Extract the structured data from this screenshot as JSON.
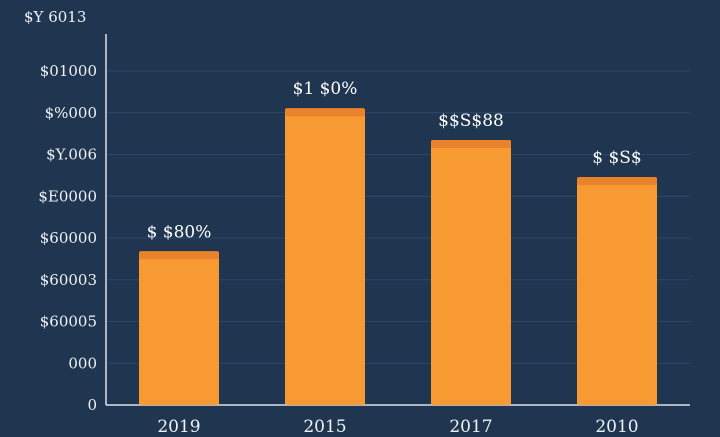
{
  "colors": {
    "background": "#1f3550",
    "bar": "#f79a32",
    "bar_top": "#e9822a",
    "grid": "#2d4867",
    "text": "#eef3f8"
  },
  "chart_data": {
    "type": "bar",
    "title": "",
    "xlabel": "",
    "ylabel": "",
    "axis_top_label": "$Y 6013",
    "y_tick_labels": [
      "$01000",
      "$%000",
      "$Y.006",
      "$E0000",
      "$60000",
      "$60003",
      "$60005",
      "000",
      "0"
    ],
    "categories": [
      "2019",
      "2015",
      "2017",
      "2010"
    ],
    "values": [
      2.9,
      5.6,
      5.0,
      4.3
    ],
    "value_labels": [
      "$ $80%",
      "$1 $0%",
      "$$S$88",
      "$ $S$"
    ],
    "ylim": [
      0,
      7
    ],
    "grid": true
  }
}
